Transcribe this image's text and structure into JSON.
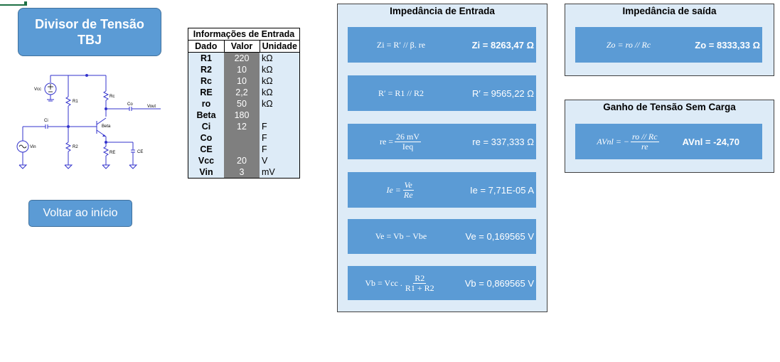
{
  "title": {
    "line1": "Divisor de Tensão",
    "line2": "TBJ"
  },
  "back_button": "Voltar ao início",
  "circuit": {
    "vcc": "Vcc",
    "r1": "R1",
    "rc": "Rc",
    "co": "Co",
    "vout": "Vout",
    "ci": "Ci",
    "beta": "Beta",
    "vin": "Vin",
    "r2": "R2",
    "re": "RE",
    "ce": "CE"
  },
  "inputs": {
    "title": "Informações de Entrada",
    "headers": [
      "Dado",
      "Valor",
      "Unidade"
    ],
    "rows": [
      {
        "dado": "R1",
        "valor": "220",
        "unidade": "kΩ"
      },
      {
        "dado": "R2",
        "valor": "10",
        "unidade": "kΩ"
      },
      {
        "dado": "Rc",
        "valor": "10",
        "unidade": "kΩ"
      },
      {
        "dado": "RE",
        "valor": "2,2",
        "unidade": "kΩ"
      },
      {
        "dado": "ro",
        "valor": "50",
        "unidade": "kΩ"
      },
      {
        "dado": "Beta",
        "valor": "180",
        "unidade": ""
      },
      {
        "dado": "Ci",
        "valor": "12",
        "unidade": "F"
      },
      {
        "dado": "Co",
        "valor": "",
        "unidade": "F"
      },
      {
        "dado": "CE",
        "valor": "",
        "unidade": "F"
      },
      {
        "dado": "Vcc",
        "valor": "20",
        "unidade": "V"
      },
      {
        "dado": "Vin",
        "valor": "3",
        "unidade": "mV"
      }
    ]
  },
  "entrada": {
    "title": "Impedância de Entrada",
    "zi": {
      "formula": "Zi = R′ // β. re",
      "result": "Zi = 8263,47 Ω"
    },
    "rp": {
      "formula": "R′ = R1 // R2",
      "result": "R′ =   9565,22 Ω"
    },
    "re": {
      "lhs": "re =",
      "num": "26 mV",
      "den": "Ieq",
      "result": "re =   337,333 Ω"
    },
    "ie": {
      "lhs": "Ie =",
      "num": "Ve",
      "den": "Re",
      "result": "Ie =  7,71E-05 A"
    },
    "ve": {
      "formula": "Ve = Vb − Vbe",
      "result": "Ve =  0,169565 V"
    },
    "vb": {
      "lhs": "Vb = Vcc .",
      "num": "R2",
      "den": "R1 + R2",
      "result": "Vb =  0,869565 V"
    }
  },
  "saida": {
    "title": "Impedância de saída",
    "zo": {
      "formula": "Zo = ro // Rc",
      "result": "Zo = 8333,33 Ω"
    }
  },
  "ganho": {
    "title": "Ganho de Tensão Sem Carga",
    "avnl": {
      "lhs": "AVnl = −",
      "num": "ro // Rc",
      "den": "re",
      "result": "AVnl = -24,70"
    }
  },
  "colors": {
    "accent": "#5b9bd5",
    "panel": "#ddebf7",
    "value_cell": "#7f7f7f",
    "wire": "#3333cc"
  }
}
